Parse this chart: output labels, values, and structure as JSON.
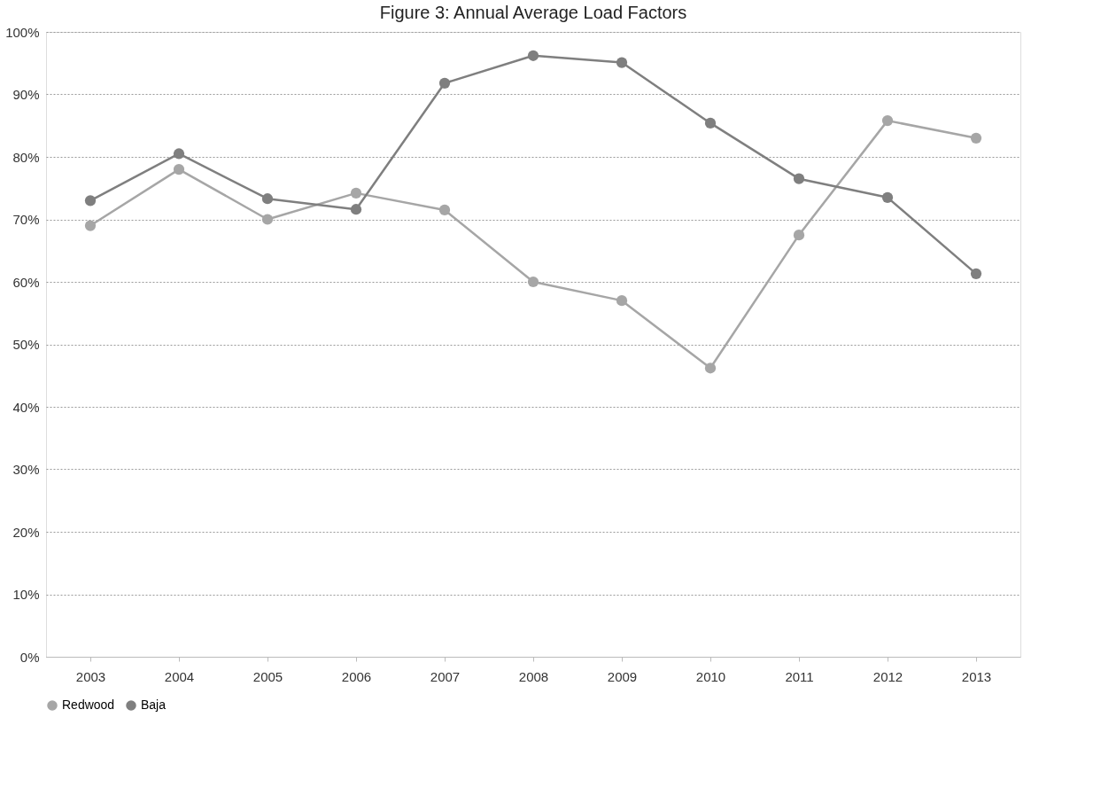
{
  "chart_data": {
    "type": "line",
    "title": "Figure 3:  Annual Average Load Factors",
    "categories": [
      "2003",
      "2004",
      "2005",
      "2006",
      "2007",
      "2008",
      "2009",
      "2010",
      "2011",
      "2012",
      "2013"
    ],
    "series": [
      {
        "name": "Redwood",
        "color": "#a6a6a6",
        "values": [
          69,
          78,
          70,
          74.2,
          71.5,
          60,
          57,
          46.2,
          67.5,
          85.8,
          83
        ]
      },
      {
        "name": "Baja",
        "color": "#7f7f7f",
        "values": [
          73,
          80.5,
          73.3,
          71.6,
          91.8,
          96.2,
          95.1,
          85.4,
          76.5,
          73.5,
          61.3
        ]
      }
    ],
    "ylim": [
      0,
      100
    ],
    "yticks": [
      {
        "value": 0,
        "label": "0%"
      },
      {
        "value": 10,
        "label": "10%"
      },
      {
        "value": 20,
        "label": "20%"
      },
      {
        "value": 30,
        "label": "30%"
      },
      {
        "value": 40,
        "label": "40%"
      },
      {
        "value": 50,
        "label": "50%"
      },
      {
        "value": 60,
        "label": "60%"
      },
      {
        "value": 70,
        "label": "70%"
      },
      {
        "value": 80,
        "label": "80%"
      },
      {
        "value": 90,
        "label": "90%"
      },
      {
        "value": 100,
        "label": "100%"
      }
    ],
    "grid": "y",
    "legend": "bottom",
    "marker": "circle",
    "line_style": "solid"
  }
}
